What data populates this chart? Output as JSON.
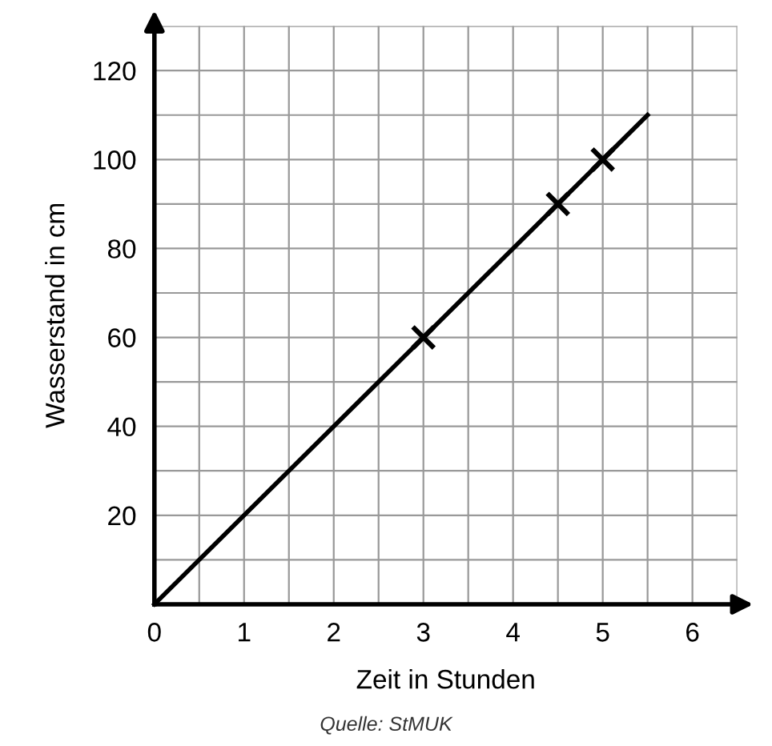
{
  "chart_data": {
    "type": "line",
    "xlabel": "Zeit in Stunden",
    "ylabel": "Wasserstand in cm",
    "xlim": [
      0,
      6.5
    ],
    "ylim": [
      0,
      130
    ],
    "xticks": [
      0,
      {
        "value": 0.5,
        "label": null
      },
      1,
      {
        "value": 1.5,
        "label": null
      },
      2,
      {
        "value": 2.5,
        "label": null
      },
      3,
      {
        "value": 3.5,
        "label": null
      },
      4,
      {
        "value": 4.5,
        "label": null
      },
      5,
      {
        "value": 5.5,
        "label": null
      },
      6,
      {
        "value": 6.5,
        "label": null
      }
    ],
    "yticks": [
      {
        "value": 0,
        "label": null
      },
      {
        "value": 10,
        "label": null
      },
      20,
      {
        "value": 30,
        "label": null
      },
      40,
      {
        "value": 50,
        "label": null
      },
      60,
      {
        "value": 70,
        "label": null
      },
      80,
      {
        "value": 90,
        "label": null
      },
      100,
      {
        "value": 110,
        "label": null
      },
      120,
      {
        "value": 130,
        "label": null
      }
    ],
    "grid": true,
    "series": [
      {
        "color": "#000000",
        "x": [
          0,
          5.5
        ],
        "values": [
          0,
          110
        ],
        "marker": "none",
        "line_style": "solid"
      },
      {
        "type": "scatter",
        "color": "#000000",
        "x": [
          3,
          4.5,
          5
        ],
        "values": [
          60,
          90,
          100
        ],
        "marker": "cross"
      }
    ],
    "annotations": [
      "Quelle: StMUK"
    ]
  }
}
